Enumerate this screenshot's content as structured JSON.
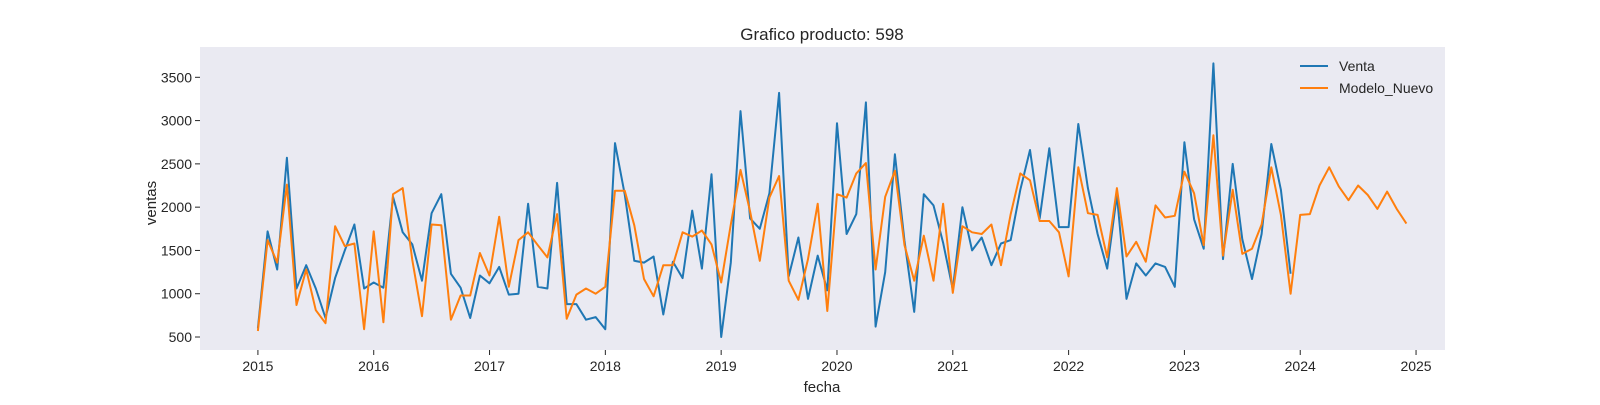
{
  "chart_data": {
    "type": "line",
    "title": "Grafico producto: 598",
    "xlabel": "fecha",
    "ylabel": "ventas",
    "xlim": [
      "2014-07-01",
      "2025-04-01"
    ],
    "ylim": [
      350,
      3850
    ],
    "x_ticks": [
      "2015",
      "2016",
      "2017",
      "2018",
      "2019",
      "2020",
      "2021",
      "2022",
      "2023",
      "2024",
      "2025"
    ],
    "y_ticks": [
      500,
      1000,
      1500,
      2000,
      2500,
      3000,
      3500
    ],
    "grid": false,
    "legend_position": "top-right",
    "background_color": "#eaeaf2",
    "series": [
      {
        "name": "Venta",
        "color": "#1f77b4",
        "start": "2015-01",
        "values": [
          600,
          1720,
          1280,
          2570,
          1060,
          1330,
          1060,
          720,
          1180,
          1500,
          1800,
          1060,
          1130,
          1070,
          2120,
          1710,
          1570,
          1150,
          1930,
          2150,
          1230,
          1070,
          720,
          1210,
          1120,
          1310,
          990,
          1000,
          2040,
          1080,
          1060,
          2280,
          880,
          880,
          700,
          730,
          590,
          2740,
          2150,
          1380,
          1360,
          1430,
          760,
          1370,
          1180,
          1960,
          1290,
          2380,
          500,
          1360,
          3110,
          1870,
          1750,
          2160,
          3320,
          1200,
          1650,
          940,
          1440,
          1040,
          2970,
          1690,
          1920,
          3210,
          620,
          1250,
          2610,
          1610,
          790,
          2150,
          2020,
          1590,
          1050,
          2000,
          1500,
          1650,
          1330,
          1580,
          1620,
          2200,
          2660,
          1870,
          2680,
          1770,
          1770,
          2960,
          2220,
          1690,
          1290,
          2140,
          940,
          1350,
          1210,
          1350,
          1310,
          1080,
          2750,
          1860,
          1520,
          3660,
          1400,
          2500,
          1630,
          1170,
          1690,
          2730,
          2200,
          1230
        ]
      },
      {
        "name": "Modelo_Nuevo",
        "color": "#ff7f0e",
        "start": "2015-01",
        "values": [
          570,
          1620,
          1360,
          2260,
          870,
          1280,
          810,
          660,
          1780,
          1550,
          1580,
          590,
          1720,
          670,
          2150,
          2220,
          1390,
          740,
          1800,
          1790,
          700,
          980,
          980,
          1470,
          1210,
          1890,
          1080,
          1620,
          1710,
          1560,
          1420,
          1920,
          710,
          990,
          1060,
          1000,
          1080,
          2190,
          2190,
          1790,
          1170,
          970,
          1330,
          1330,
          1710,
          1660,
          1730,
          1570,
          1130,
          1800,
          2430,
          1950,
          1380,
          2110,
          2360,
          1150,
          930,
          1400,
          2040,
          800,
          2150,
          2110,
          2390,
          2510,
          1280,
          2120,
          2420,
          1560,
          1150,
          1670,
          1150,
          2040,
          1010,
          1780,
          1710,
          1690,
          1800,
          1330,
          1920,
          2390,
          2310,
          1840,
          1840,
          1710,
          1200,
          2460,
          1930,
          1910,
          1420,
          2220,
          1430,
          1600,
          1370,
          2020,
          1880,
          1900,
          2410,
          2160,
          1560,
          2830,
          1440,
          2200,
          1460,
          1520,
          1800,
          2460,
          1910,
          1000,
          1910,
          1920,
          2250,
          2460,
          2240,
          2080,
          2250,
          2140,
          1980,
          2180,
          1980,
          1810
        ]
      }
    ]
  }
}
